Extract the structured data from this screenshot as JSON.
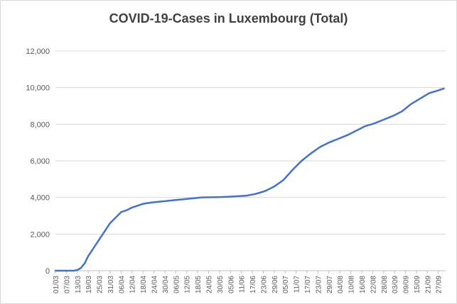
{
  "chart_data": {
    "type": "line",
    "title": "COVID-19-Cases in Luxembourg (Total)",
    "xlabel": "",
    "ylabel": "",
    "ylim": [
      0,
      12000
    ],
    "yticks": [
      "0",
      "2,000",
      "4,000",
      "6,000",
      "8,000",
      "10,000",
      "12,000"
    ],
    "x_tick_labels": [
      "01/03",
      "07/03",
      "13/03",
      "19/03",
      "25/03",
      "31/03",
      "06/04",
      "12/04",
      "18/04",
      "24/04",
      "30/04",
      "06/05",
      "12/05",
      "18/05",
      "24/05",
      "30/05",
      "05/06",
      "11/06",
      "17/06",
      "23/06",
      "29/06",
      "05/07",
      "11/07",
      "17/07",
      "23/07",
      "29/07",
      "04/08",
      "10/08",
      "16/08",
      "22/08",
      "28/08",
      "03/09",
      "09/09",
      "15/09",
      "21/09",
      "27/09"
    ],
    "x_tick_start_day": 0,
    "x_tick_step_days": 6,
    "grid": "horizontal",
    "legend": "none",
    "line_color": "#4472c4",
    "series": [
      {
        "x_days": [
          0,
          10,
          12,
          14,
          16,
          18,
          20,
          22,
          24,
          26,
          28,
          30,
          33,
          36,
          39,
          42,
          45,
          48,
          51,
          55,
          60,
          65,
          70,
          75,
          80,
          85,
          90,
          95,
          100,
          105,
          110,
          115,
          120,
          125,
          130,
          135,
          140,
          145,
          150,
          155,
          160,
          165,
          170,
          175,
          180,
          185,
          190,
          195,
          200,
          205,
          210,
          213
        ],
        "values": [
          0,
          0,
          40,
          150,
          400,
          800,
          1100,
          1400,
          1700,
          2000,
          2300,
          2600,
          2900,
          3200,
          3300,
          3450,
          3550,
          3650,
          3700,
          3750,
          3800,
          3850,
          3900,
          3950,
          4000,
          4010,
          4020,
          4040,
          4070,
          4100,
          4200,
          4350,
          4600,
          4950,
          5500,
          6000,
          6400,
          6750,
          7000,
          7200,
          7400,
          7650,
          7900,
          8050,
          8250,
          8450,
          8700,
          9100,
          9400,
          9700,
          9850,
          9950
        ]
      }
    ]
  }
}
